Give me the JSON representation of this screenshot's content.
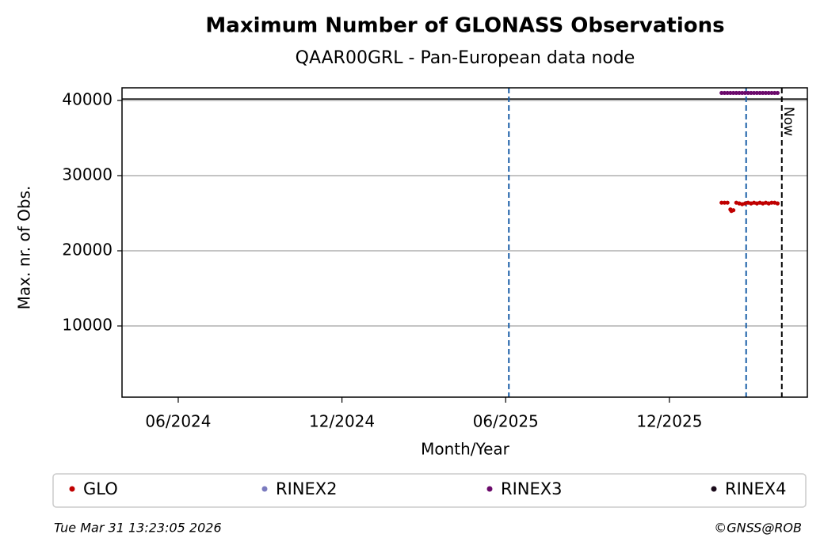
{
  "chart_data": {
    "type": "scatter",
    "title": "Maximum Number of GLONASS Observations",
    "subtitle": "QAAR00GRL - Pan-European data node",
    "x_label": "Month/Year",
    "y_label": "Max. nr. of Obs.",
    "xlim": [
      2024.245,
      2026.338
    ],
    "ylim": [
      530,
      41680
    ],
    "xticks": [
      {
        "value": 2024.4167,
        "label": "06/2024"
      },
      {
        "value": 2024.9167,
        "label": "12/2024"
      },
      {
        "value": 2025.4167,
        "label": "06/2025"
      },
      {
        "value": 2025.9167,
        "label": "12/2025"
      }
    ],
    "yticks": [
      10000,
      20000,
      30000,
      40000
    ],
    "grid": true,
    "vlines": [
      {
        "x": 2025.4264,
        "color": "#1a5fa8"
      },
      {
        "x": 2026.151,
        "color": "#1a5fa8"
      },
      {
        "x": 2026.26,
        "color": "#000000",
        "label": "Now"
      }
    ],
    "hlines": [
      {
        "y": 40200,
        "color": "#000000"
      }
    ],
    "series": [
      {
        "name": "GLO",
        "color": "#c00000",
        "x": [
          2026.076,
          2026.085,
          2026.094,
          2026.103,
          2026.106,
          2026.112,
          2026.121,
          2026.13,
          2026.139,
          2026.148,
          2026.157,
          2026.166,
          2026.175,
          2026.184,
          2026.193,
          2026.202,
          2026.211,
          2026.22,
          2026.229,
          2026.238,
          2026.247
        ],
        "values": [
          26400,
          26400,
          26400,
          25500,
          25300,
          25400,
          26400,
          26300,
          26200,
          26300,
          26400,
          26300,
          26400,
          26300,
          26400,
          26300,
          26400,
          26300,
          26400,
          26400,
          26300
        ]
      },
      {
        "name": "RINEX2",
        "color": "#7b7bbf",
        "x": [],
        "values": []
      },
      {
        "name": "RINEX3",
        "color": "#6b0a6b",
        "x": [
          2026.076,
          2026.085,
          2026.094,
          2026.103,
          2026.112,
          2026.121,
          2026.13,
          2026.139,
          2026.148,
          2026.157,
          2026.166,
          2026.175,
          2026.184,
          2026.193,
          2026.202,
          2026.211,
          2026.22,
          2026.229,
          2026.238,
          2026.247
        ],
        "values": [
          41000,
          41000,
          41000,
          41000,
          41000,
          41000,
          41000,
          41000,
          41000,
          41000,
          41000,
          41000,
          41000,
          41000,
          41000,
          41000,
          41000,
          41000,
          41000,
          41000
        ]
      },
      {
        "name": "RINEX4",
        "color": "#1a0a1a",
        "x": [],
        "values": []
      }
    ],
    "footer_left": "Tue Mar 31 13:23:05 2026",
    "footer_right": "©GNSS@ROB"
  }
}
